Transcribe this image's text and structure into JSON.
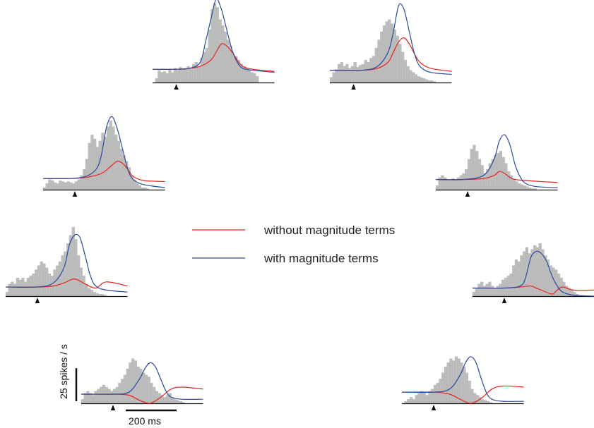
{
  "colors": {
    "bars": "#bdbdbd",
    "bar_edge": "#a8a8a8",
    "without": "#e8221e",
    "with": "#2a4a9c",
    "axis": "#111111"
  },
  "legend": {
    "without_label": "without magnitude terms",
    "with_label": "with magnitude terms"
  },
  "scale_bar": {
    "y_label": "25 spikes / s",
    "y_value": 25,
    "x_label": "200 ms",
    "x_value": 200
  },
  "chart_data": [
    {
      "type": "bar",
      "position": "top-left-center",
      "baseline": 13,
      "bin_ms": 12.5,
      "marker_ms": 112,
      "duration_ms": 575,
      "values": [
        0,
        4,
        12,
        10,
        11,
        9,
        13,
        10,
        14,
        12,
        15,
        13,
        14,
        16,
        14,
        18,
        20,
        16,
        24,
        30,
        34,
        52,
        72,
        78,
        74,
        62,
        56,
        50,
        42,
        36,
        28,
        26,
        22,
        18,
        16,
        14,
        12,
        10,
        9,
        6
      ],
      "series": [
        {
          "name": "without magnitude terms",
          "x": [
            0,
            100,
            175,
            225,
            275,
            300,
            325,
            350,
            375,
            400,
            425,
            475,
            575
          ],
          "y": [
            13,
            13,
            14,
            16,
            22,
            30,
            38,
            36,
            30,
            22,
            16,
            13,
            11
          ]
        },
        {
          "name": "with magnitude terms",
          "x": [
            0,
            100,
            175,
            225,
            250,
            275,
            300,
            325,
            350,
            375,
            400,
            425,
            475,
            575
          ],
          "y": [
            13,
            13,
            14,
            20,
            40,
            62,
            82,
            72,
            52,
            32,
            20,
            14,
            12,
            10
          ]
        }
      ]
    },
    {
      "type": "bar",
      "position": "top-right-center",
      "baseline": 12,
      "bin_ms": 12.5,
      "marker_ms": 112,
      "duration_ms": 575,
      "values": [
        5,
        10,
        13,
        18,
        20,
        16,
        18,
        14,
        16,
        20,
        15,
        17,
        18,
        22,
        20,
        24,
        26,
        34,
        42,
        50,
        56,
        60,
        62,
        58,
        52,
        46,
        38,
        30,
        22,
        16,
        12,
        10,
        8,
        6,
        5,
        4,
        3,
        2,
        2,
        1
      ],
      "series": [
        {
          "name": "without magnitude terms",
          "x": [
            0,
            150,
            225,
            275,
            300,
            325,
            350,
            375,
            400,
            425,
            475,
            575
          ],
          "y": [
            12,
            12,
            14,
            20,
            30,
            40,
            44,
            38,
            28,
            20,
            14,
            11
          ]
        },
        {
          "name": "with magnitude terms",
          "x": [
            0,
            150,
            225,
            275,
            300,
            325,
            350,
            375,
            400,
            425,
            475,
            575
          ],
          "y": [
            12,
            12,
            16,
            30,
            50,
            76,
            72,
            50,
            28,
            16,
            10,
            8
          ]
        }
      ]
    },
    {
      "type": "bar",
      "position": "upper-left",
      "baseline": 11,
      "bin_ms": 12.5,
      "marker_ms": 150,
      "duration_ms": 575,
      "values": [
        2,
        6,
        10,
        9,
        7,
        6,
        9,
        8,
        7,
        8,
        7,
        6,
        8,
        10,
        14,
        20,
        30,
        46,
        54,
        50,
        42,
        48,
        56,
        52,
        62,
        68,
        62,
        54,
        48,
        40,
        34,
        28,
        22,
        14,
        10,
        6,
        4,
        2,
        2,
        1
      ],
      "series": [
        {
          "name": "without magnitude terms",
          "x": [
            0,
            125,
            200,
            275,
            325,
            350,
            375,
            400,
            425,
            475,
            575
          ],
          "y": [
            11,
            11,
            12,
            16,
            24,
            28,
            26,
            20,
            13,
            9,
            8
          ]
        },
        {
          "name": "with magnitude terms",
          "x": [
            0,
            125,
            200,
            250,
            275,
            300,
            325,
            350,
            375,
            400,
            425,
            475,
            575
          ],
          "y": [
            11,
            11,
            13,
            20,
            34,
            62,
            72,
            60,
            40,
            20,
            10,
            5,
            2
          ]
        }
      ]
    },
    {
      "type": "bar",
      "position": "upper-right",
      "baseline": 10,
      "bin_ms": 12.5,
      "marker_ms": 150,
      "duration_ms": 575,
      "values": [
        4,
        12,
        14,
        12,
        10,
        9,
        11,
        10,
        12,
        14,
        16,
        20,
        30,
        40,
        44,
        38,
        30,
        24,
        16,
        20,
        26,
        30,
        34,
        36,
        38,
        32,
        26,
        18,
        14,
        10,
        8,
        6,
        5,
        4,
        3,
        2,
        1,
        1,
        0,
        0
      ],
      "series": [
        {
          "name": "without magnitude terms",
          "x": [
            0,
            125,
            225,
            275,
            300,
            325,
            350,
            375,
            425,
            575
          ],
          "y": [
            10,
            10,
            11,
            14,
            18,
            16,
            12,
            10,
            9,
            7
          ]
        },
        {
          "name": "with magnitude terms",
          "x": [
            0,
            125,
            225,
            275,
            300,
            325,
            350,
            375,
            400,
            425,
            475,
            575
          ],
          "y": [
            10,
            10,
            14,
            30,
            48,
            54,
            44,
            24,
            12,
            6,
            3,
            2
          ]
        }
      ]
    },
    {
      "type": "bar",
      "position": "middle-left",
      "baseline": 9,
      "bin_ms": 12.5,
      "marker_ms": 150,
      "duration_ms": 575,
      "values": [
        4,
        12,
        14,
        12,
        18,
        16,
        18,
        14,
        18,
        20,
        22,
        26,
        30,
        34,
        32,
        28,
        22,
        20,
        26,
        30,
        34,
        40,
        44,
        52,
        60,
        68,
        56,
        40,
        28,
        20,
        12,
        8,
        6,
        4,
        3,
        2,
        2,
        1,
        0,
        0
      ],
      "series": [
        {
          "name": "without magnitude terms",
          "x": [
            0,
            150,
            225,
            275,
            325,
            375,
            425,
            475,
            575
          ],
          "y": [
            9,
            9,
            10,
            13,
            17,
            12,
            8,
            14,
            10
          ]
        },
        {
          "name": "with magnitude terms",
          "x": [
            0,
            150,
            225,
            275,
            300,
            325,
            350,
            375,
            400,
            425,
            475,
            575
          ],
          "y": [
            9,
            9,
            13,
            28,
            50,
            60,
            58,
            40,
            20,
            10,
            6,
            4
          ]
        }
      ]
    },
    {
      "type": "bar",
      "position": "middle-right",
      "baseline": 8,
      "bin_ms": 12.5,
      "marker_ms": 150,
      "duration_ms": 575,
      "values": [
        4,
        8,
        12,
        14,
        10,
        12,
        14,
        10,
        8,
        10,
        12,
        16,
        18,
        20,
        22,
        30,
        36,
        34,
        40,
        44,
        48,
        42,
        46,
        50,
        48,
        52,
        46,
        40,
        36,
        30,
        28,
        26,
        22,
        18,
        14,
        10,
        8,
        6,
        4,
        2
      ],
      "series": [
        {
          "name": "without magnitude terms",
          "x": [
            0,
            150,
            225,
            275,
            300,
            325,
            375,
            400,
            425,
            475,
            575
          ],
          "y": [
            8,
            8,
            9,
            10,
            8,
            6,
            2,
            6,
            9,
            6,
            6
          ]
        },
        {
          "name": "with magnitude terms",
          "x": [
            0,
            150,
            225,
            250,
            275,
            300,
            325,
            350,
            375,
            400,
            425,
            475,
            575
          ],
          "y": [
            8,
            8,
            10,
            18,
            38,
            44,
            42,
            34,
            20,
            10,
            4,
            1,
            0
          ]
        }
      ]
    },
    {
      "type": "bar",
      "position": "bottom-left",
      "baseline": 9,
      "bin_ms": 12.5,
      "marker_ms": 150,
      "duration_ms": 575,
      "values": [
        4,
        10,
        12,
        10,
        8,
        12,
        14,
        16,
        18,
        16,
        14,
        12,
        14,
        16,
        20,
        24,
        28,
        34,
        40,
        44,
        42,
        36,
        34,
        30,
        28,
        26,
        20,
        16,
        12,
        10,
        8,
        6,
        8,
        10,
        6,
        4,
        3,
        2,
        1,
        0
      ],
      "series": [
        {
          "name": "without magnitude terms",
          "x": [
            0,
            150,
            225,
            275,
            325,
            375,
            425,
            475,
            575
          ],
          "y": [
            9,
            9,
            8,
            3,
            0,
            6,
            14,
            16,
            14
          ]
        },
        {
          "name": "with magnitude terms",
          "x": [
            0,
            150,
            225,
            275,
            300,
            325,
            350,
            375,
            400,
            425,
            475,
            575
          ],
          "y": [
            9,
            9,
            11,
            24,
            34,
            40,
            36,
            24,
            12,
            6,
            4,
            4
          ]
        }
      ]
    },
    {
      "type": "bar",
      "position": "bottom-right",
      "baseline": 11,
      "bin_ms": 12.5,
      "marker_ms": 150,
      "duration_ms": 575,
      "values": [
        0,
        2,
        4,
        6,
        4,
        8,
        10,
        12,
        10,
        8,
        12,
        14,
        18,
        20,
        24,
        30,
        36,
        40,
        44,
        42,
        46,
        44,
        40,
        36,
        30,
        22,
        14,
        10,
        8,
        6,
        4,
        3,
        2,
        1,
        0,
        0,
        0,
        0,
        0,
        0
      ],
      "series": [
        {
          "name": "without magnitude terms",
          "x": [
            0,
            150,
            225,
            275,
            325,
            375,
            425,
            475,
            575
          ],
          "y": [
            11,
            11,
            9,
            4,
            0,
            5,
            14,
            17,
            16
          ]
        },
        {
          "name": "with magnitude terms",
          "x": [
            0,
            150,
            225,
            275,
            300,
            325,
            350,
            375,
            400,
            425,
            475,
            575
          ],
          "y": [
            11,
            11,
            14,
            28,
            40,
            46,
            40,
            24,
            10,
            4,
            2,
            2
          ]
        }
      ]
    }
  ]
}
